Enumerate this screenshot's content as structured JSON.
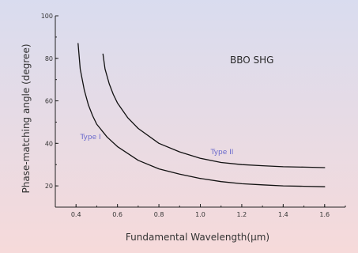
{
  "chart_data": {
    "type": "line",
    "title": "",
    "annotation": "BBO SHG",
    "xlabel": "Fundamental Wavelength(µm)",
    "ylabel": "Phase-matching angle (degree)",
    "xlim": [
      0.3,
      1.7
    ],
    "ylim": [
      10,
      100
    ],
    "xticks": [
      "0.4",
      "0.6",
      "0.8",
      "1.0",
      "1.2",
      "1.4",
      "1.6"
    ],
    "yticks": [
      "20",
      "40",
      "60",
      "80",
      "100"
    ],
    "grid": false,
    "legend": "none",
    "series": [
      {
        "name": "Type I",
        "color": "#111111",
        "x": [
          0.41,
          0.42,
          0.44,
          0.46,
          0.48,
          0.5,
          0.55,
          0.6,
          0.7,
          0.8,
          0.9,
          1.0,
          1.1,
          1.2,
          1.3,
          1.4,
          1.5,
          1.6
        ],
        "y": [
          87,
          75,
          65,
          58,
          53,
          49,
          43,
          38.5,
          32,
          28,
          25.5,
          23.5,
          22,
          21,
          20.5,
          20,
          19.8,
          19.6
        ]
      },
      {
        "name": "Type II",
        "color": "#111111",
        "x": [
          0.53,
          0.54,
          0.56,
          0.58,
          0.6,
          0.65,
          0.7,
          0.8,
          0.9,
          1.0,
          1.1,
          1.2,
          1.3,
          1.4,
          1.5,
          1.6
        ],
        "y": [
          82,
          75,
          68,
          63,
          59,
          52,
          47,
          40,
          36,
          33,
          31,
          30,
          29.5,
          29,
          28.8,
          28.6
        ]
      }
    ],
    "series_labels": [
      {
        "text": "Type I",
        "x": 0.42,
        "y": 42
      },
      {
        "text": "Type II",
        "x": 1.05,
        "y": 35
      }
    ],
    "colors": {
      "bg_top": "#d9dcef",
      "bg_bottom": "#f6dada",
      "axis": "#222222",
      "series_label": "#6a6acc"
    }
  }
}
